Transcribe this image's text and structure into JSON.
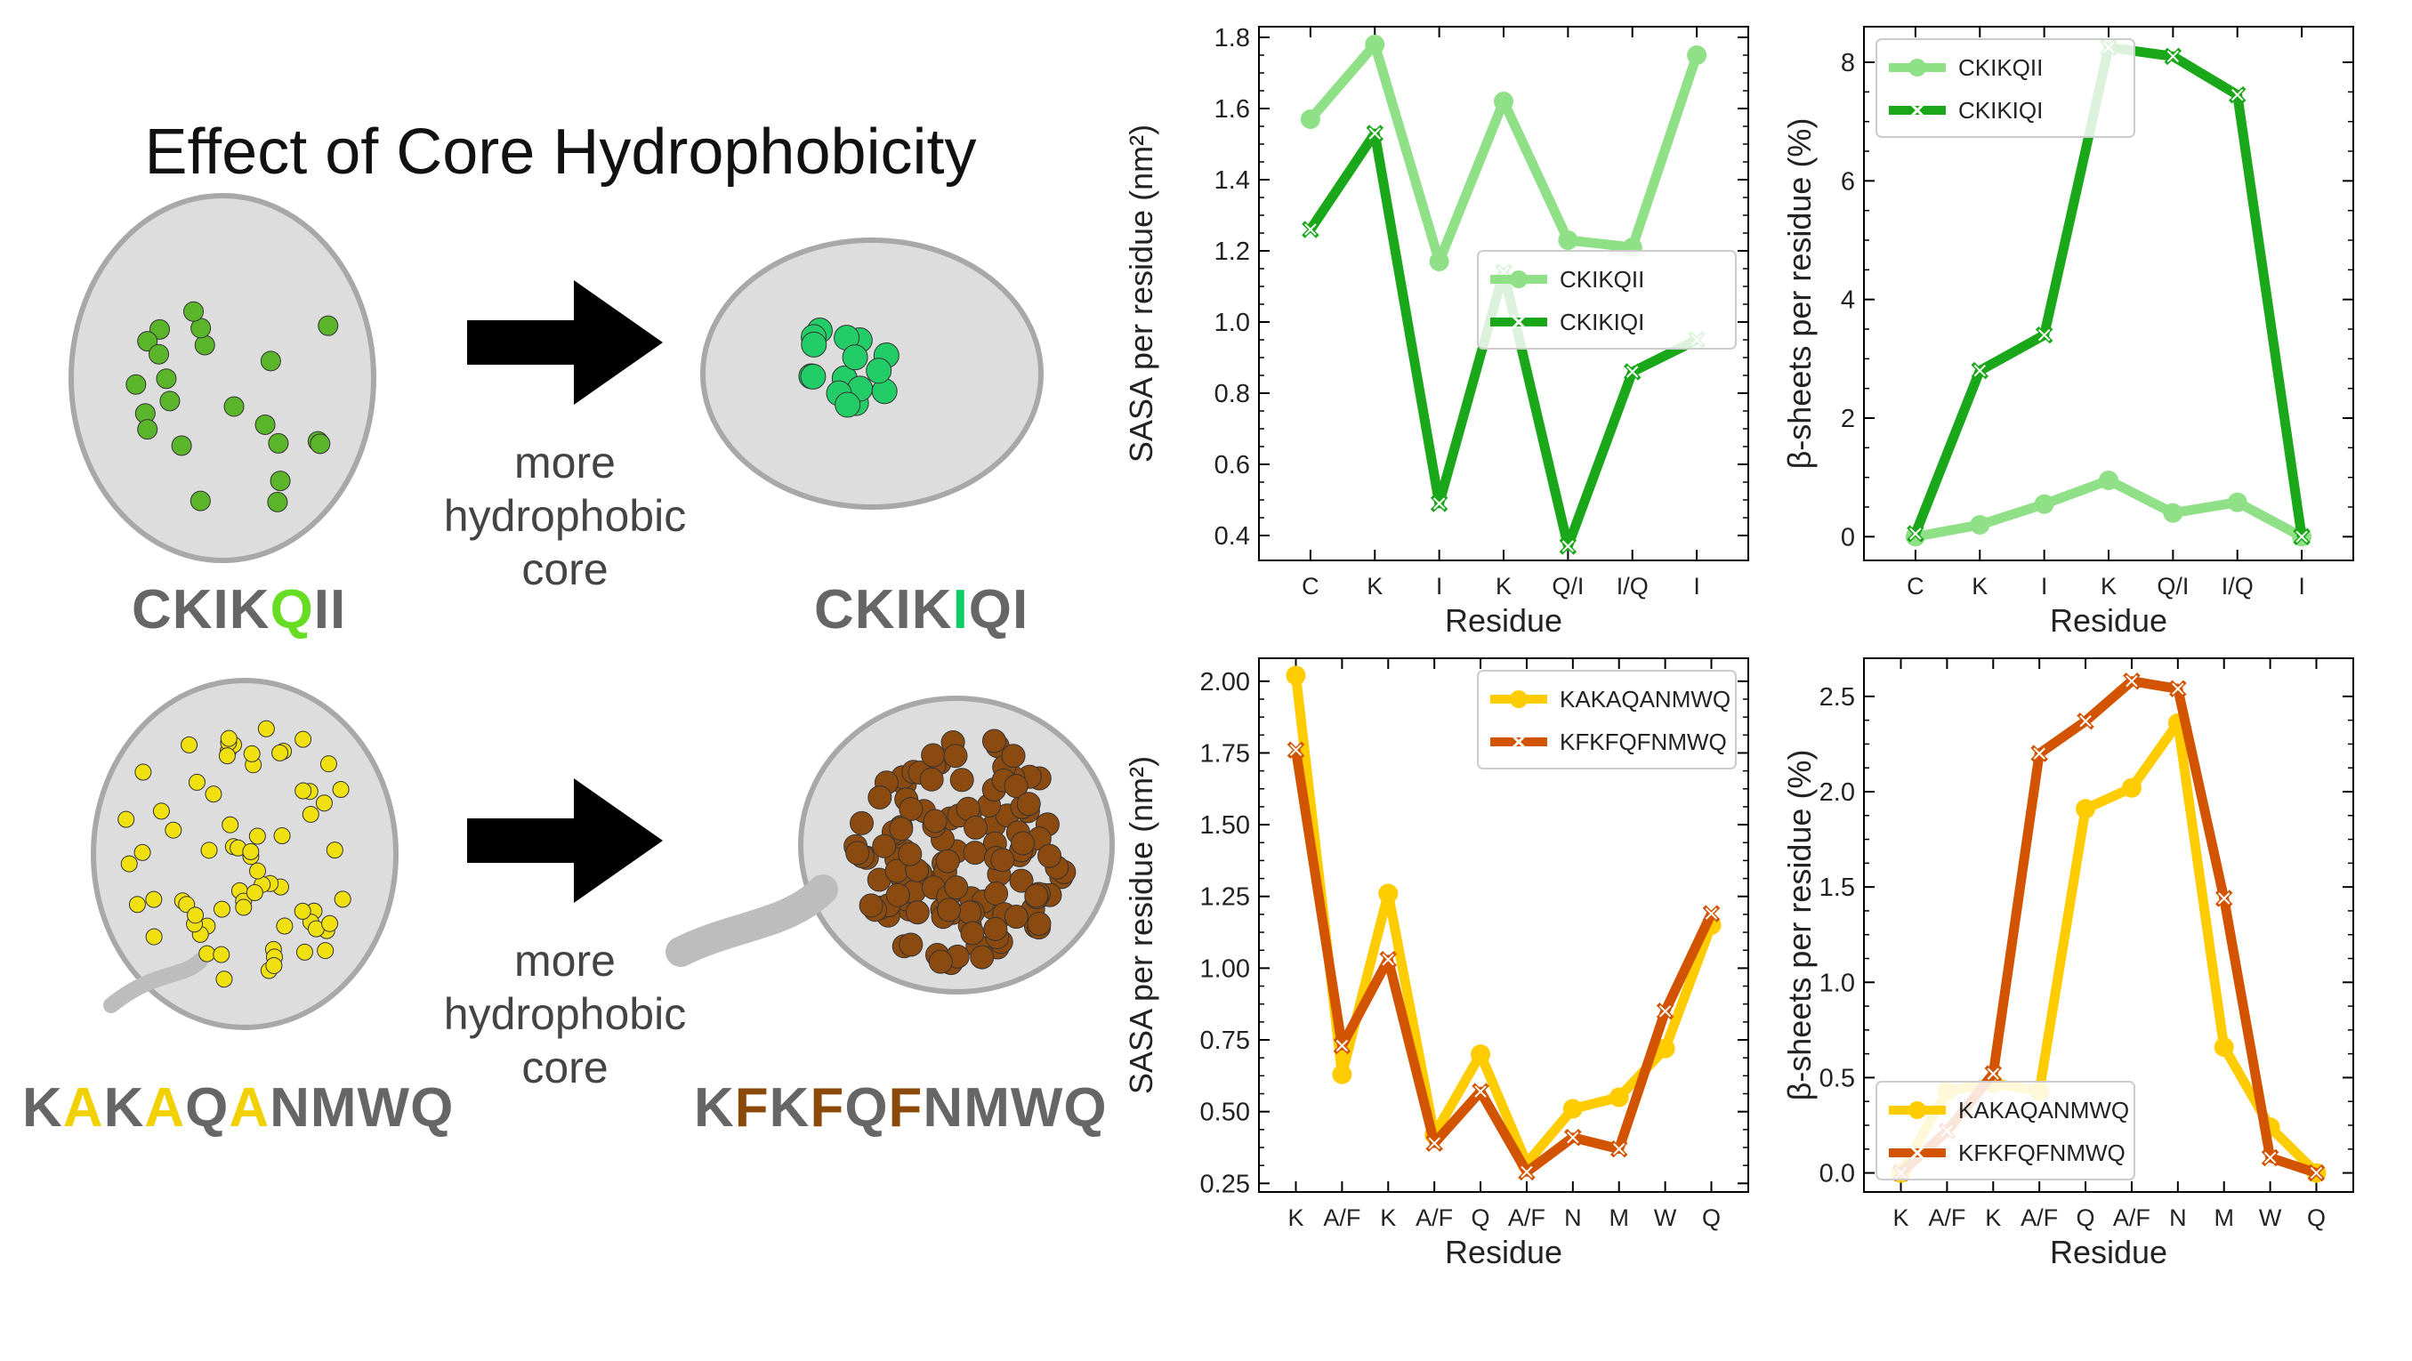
{
  "left": {
    "title": "Effect of Core Hydrophobicity",
    "arrow_caption": [
      "more",
      "hydrophobic",
      "core"
    ],
    "sequences": {
      "top_left": [
        {
          "t": "CKIK",
          "h": false
        },
        {
          "t": "Q",
          "h": true
        },
        {
          "t": "II",
          "h": false
        }
      ],
      "top_right": [
        {
          "t": "CKIK",
          "h": false
        },
        {
          "t": "I",
          "h": true
        },
        {
          "t": "QI",
          "h": false
        }
      ],
      "bottom_left": [
        {
          "t": "K",
          "h": false
        },
        {
          "t": "A",
          "h": true
        },
        {
          "t": "K",
          "h": false
        },
        {
          "t": "A",
          "h": true
        },
        {
          "t": "Q",
          "h": false
        },
        {
          "t": "A",
          "h": true
        },
        {
          "t": "NMWQ",
          "h": false
        }
      ],
      "bottom_right": [
        {
          "t": "K",
          "h": false
        },
        {
          "t": "F",
          "h": true
        },
        {
          "t": "K",
          "h": false
        },
        {
          "t": "F",
          "h": true
        },
        {
          "t": "Q",
          "h": false
        },
        {
          "t": "F",
          "h": true
        },
        {
          "t": "NMWQ",
          "h": false
        }
      ]
    },
    "highlight_colors": {
      "top_left": "#66dd22",
      "top_right": "#11cc66",
      "bottom_left": "#f2d100",
      "bottom_right": "#8b4a0a"
    },
    "bead_colors": {
      "top_left": "#5bb52a",
      "top_right": "#22cc66",
      "bottom_left": "#f0e010",
      "bottom_right": "#8a4a10"
    }
  },
  "chart_data": [
    {
      "type": "line",
      "categories": [
        "C",
        "K",
        "I",
        "K",
        "Q/I",
        "I/Q",
        "I"
      ],
      "xlabel": "Residue",
      "ylabel": "SASA per residue (nm²)",
      "ylim": [
        0.33,
        1.83
      ],
      "yticks": [
        "0.4",
        "0.6",
        "0.8",
        "1.0",
        "1.2",
        "1.4",
        "1.6",
        "1.8"
      ],
      "ytick_values": [
        0.4,
        0.6,
        0.8,
        1.0,
        1.2,
        1.4,
        1.6,
        1.8
      ],
      "legend": "center-right",
      "series": [
        {
          "name": "CKIKQII",
          "marker": "circle",
          "color": "#90e088",
          "values": [
            1.57,
            1.78,
            1.17,
            1.62,
            1.23,
            1.21,
            1.75
          ]
        },
        {
          "name": "CKIKIQI",
          "marker": "x",
          "color": "#1aa81a",
          "values": [
            1.26,
            1.53,
            0.49,
            1.14,
            0.37,
            0.86,
            0.95
          ]
        }
      ]
    },
    {
      "type": "line",
      "categories": [
        "C",
        "K",
        "I",
        "K",
        "Q/I",
        "I/Q",
        "I"
      ],
      "xlabel": "Residue",
      "ylabel": "β-sheets per residue (%)",
      "ylim": [
        -0.4,
        8.6
      ],
      "yticks": [
        "0",
        "2",
        "4",
        "6",
        "8"
      ],
      "ytick_values": [
        0,
        2,
        4,
        6,
        8
      ],
      "legend": "top-left",
      "series": [
        {
          "name": "CKIKQII",
          "marker": "circle",
          "color": "#90e088",
          "values": [
            0.0,
            0.2,
            0.55,
            0.95,
            0.4,
            0.58,
            0.0
          ]
        },
        {
          "name": "CKIKIQI",
          "marker": "x",
          "color": "#1aa81a",
          "values": [
            0.05,
            2.8,
            3.4,
            8.25,
            8.1,
            7.45,
            0.0
          ]
        }
      ]
    },
    {
      "type": "line",
      "categories": [
        "K",
        "A/F",
        "K",
        "A/F",
        "Q",
        "A/F",
        "N",
        "M",
        "W",
        "Q"
      ],
      "xlabel": "Residue",
      "ylabel": "SASA per residue (nm²)",
      "ylim": [
        0.22,
        2.08
      ],
      "yticks": [
        "0.25",
        "0.50",
        "0.75",
        "1.00",
        "1.25",
        "1.50",
        "1.75",
        "2.00"
      ],
      "ytick_values": [
        0.25,
        0.5,
        0.75,
        1.0,
        1.25,
        1.5,
        1.75,
        2.0
      ],
      "legend": "top-right",
      "series": [
        {
          "name": "KAKAQANMWQ",
          "marker": "circle",
          "color": "#ffcc00",
          "values": [
            2.02,
            0.63,
            1.26,
            0.42,
            0.7,
            0.32,
            0.51,
            0.55,
            0.72,
            1.15
          ]
        },
        {
          "name": "KFKFQFNMWQ",
          "marker": "x",
          "color": "#d35400",
          "values": [
            1.76,
            0.73,
            1.03,
            0.39,
            0.57,
            0.29,
            0.41,
            0.37,
            0.85,
            1.19
          ]
        }
      ]
    },
    {
      "type": "line",
      "categories": [
        "K",
        "A/F",
        "K",
        "A/F",
        "Q",
        "A/F",
        "N",
        "M",
        "W",
        "Q"
      ],
      "xlabel": "Residue",
      "ylabel": "β-sheets per residue (%)",
      "ylim": [
        -0.1,
        2.7
      ],
      "yticks": [
        "0.0",
        "0.5",
        "1.0",
        "1.5",
        "2.0",
        "2.5"
      ],
      "ytick_values": [
        0.0,
        0.5,
        1.0,
        1.5,
        2.0,
        2.5
      ],
      "legend": "bottom-left",
      "series": [
        {
          "name": "KAKAQANMWQ",
          "marker": "circle",
          "color": "#ffcc00",
          "values": [
            0.0,
            0.43,
            0.47,
            0.43,
            1.91,
            2.02,
            2.36,
            0.66,
            0.24,
            0.0
          ]
        },
        {
          "name": "KFKFQFNMWQ",
          "marker": "x",
          "color": "#d35400",
          "values": [
            0.0,
            0.22,
            0.52,
            2.2,
            2.37,
            2.58,
            2.54,
            1.44,
            0.08,
            0.0
          ]
        }
      ]
    }
  ]
}
